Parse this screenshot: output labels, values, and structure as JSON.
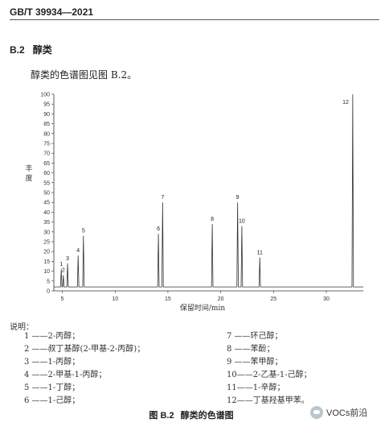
{
  "header": {
    "standard_code": "GB/T 39934—2021"
  },
  "section": {
    "number": "B.2",
    "title": "醇类"
  },
  "intro_text": "醇类的色谱图见图 B.2。",
  "chart_data": {
    "type": "line",
    "ylabel": "丰度",
    "xlabel": "保留时间/min",
    "xlim": [
      4.2,
      33.5
    ],
    "ylim": [
      0,
      100
    ],
    "yticks": [
      0,
      5,
      10,
      15,
      20,
      25,
      30,
      35,
      40,
      45,
      50,
      55,
      60,
      65,
      70,
      75,
      80,
      85,
      90,
      95,
      100
    ],
    "xticks": [
      5,
      10,
      15,
      20,
      25,
      30
    ],
    "grid": false,
    "baseline": 2,
    "peaks": [
      {
        "label": "1",
        "x": 4.9,
        "y": 11
      },
      {
        "label": "2",
        "x": 5.1,
        "y": 8
      },
      {
        "label": "3",
        "x": 5.5,
        "y": 14
      },
      {
        "label": "4",
        "x": 6.5,
        "y": 18
      },
      {
        "label": "5",
        "x": 7.0,
        "y": 28
      },
      {
        "label": "6",
        "x": 14.1,
        "y": 29
      },
      {
        "label": "7",
        "x": 14.5,
        "y": 45
      },
      {
        "label": "8",
        "x": 19.2,
        "y": 34
      },
      {
        "label": "9",
        "x": 21.6,
        "y": 45
      },
      {
        "label": "10",
        "x": 22.0,
        "y": 33
      },
      {
        "label": "11",
        "x": 23.7,
        "y": 17
      },
      {
        "label": "12",
        "x": 32.5,
        "y": 100
      }
    ]
  },
  "legend": {
    "title": "说明：",
    "left": [
      "1 ——2-丙醇；",
      "2 ——叔丁基醇(2-甲基-2-丙醇)；",
      "3 ——1-丙醇；",
      "4 ——2-甲基-1-丙醇；",
      "5 ——1-丁醇；",
      "6 ——1-己醇；"
    ],
    "right": [
      "7 ——环己醇；",
      "8 ——苯酚；",
      "9 ——苯甲醇；",
      "10——2-乙基-1-己醇；",
      "11——1-辛醇；",
      "12——丁基羟基甲苯。"
    ]
  },
  "caption": {
    "number": "图 B.2",
    "title": "醇类的色谱图"
  },
  "watermark": {
    "text": "VOCs前沿"
  }
}
